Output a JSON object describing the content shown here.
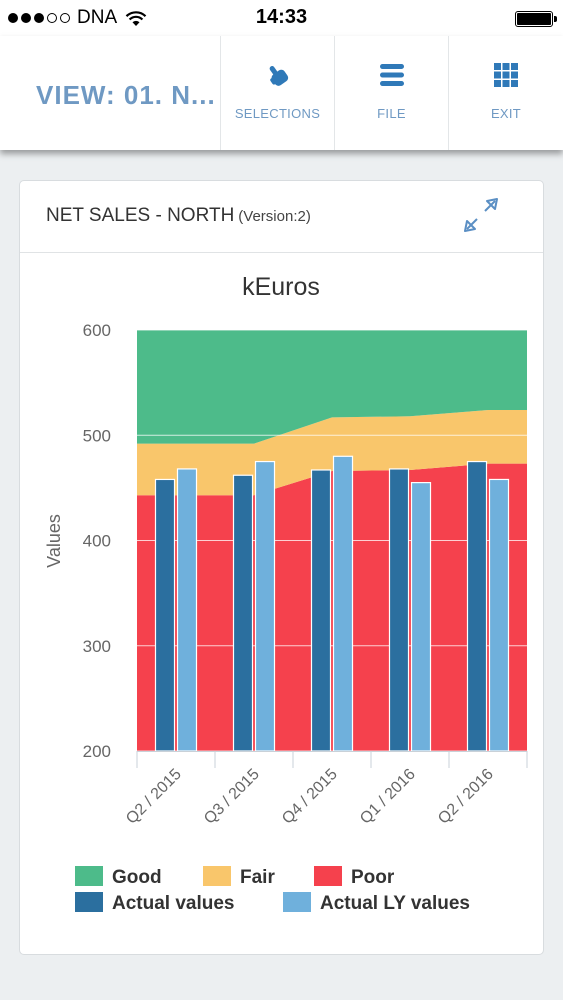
{
  "status_bar": {
    "carrier": "DNA",
    "time": "14:33"
  },
  "toolbar": {
    "view_title": "VIEW: 01. N...",
    "buttons": [
      {
        "label": "SELECTIONS",
        "icon": "pointer-hand-icon"
      },
      {
        "label": "FILE",
        "icon": "menu-lines-icon"
      },
      {
        "label": "EXIT",
        "icon": "grid-icon"
      }
    ]
  },
  "card": {
    "title": "NET SALES - NORTH",
    "version": "(Version:2)"
  },
  "colors": {
    "accent": "#6f99c3",
    "good": "#4dbb8a",
    "fair": "#f9c66b",
    "poor": "#f5414d",
    "actual": "#2b6f9f",
    "actual_ly": "#6fb0dc"
  },
  "chart_data": {
    "type": "bar",
    "title": "kEuros",
    "xlabel": "",
    "ylabel": "Values",
    "ylim": [
      200,
      600
    ],
    "yticks": [
      200,
      300,
      400,
      500,
      600
    ],
    "categories": [
      "Q2 / 2015",
      "Q3 / 2015",
      "Q4 / 2015",
      "Q1 / 2016",
      "Q2 / 2016"
    ],
    "series": [
      {
        "name": "Actual values",
        "kind": "bar",
        "values": [
          458,
          462,
          467,
          468,
          475
        ]
      },
      {
        "name": "Actual LY values",
        "kind": "bar",
        "values": [
          468,
          475,
          480,
          455,
          458
        ]
      }
    ],
    "bands": [
      {
        "name": "Poor",
        "kind": "area",
        "values": [
          443,
          443,
          466,
          467,
          473
        ]
      },
      {
        "name": "Fair",
        "kind": "area",
        "values": [
          492,
          492,
          517,
          518,
          524
        ]
      },
      {
        "name": "Good",
        "kind": "area",
        "values": [
          600,
          600,
          600,
          600,
          600
        ]
      }
    ],
    "legend": [
      "Good",
      "Fair",
      "Poor",
      "Actual values",
      "Actual LY values"
    ],
    "legend_position": "bottom"
  }
}
